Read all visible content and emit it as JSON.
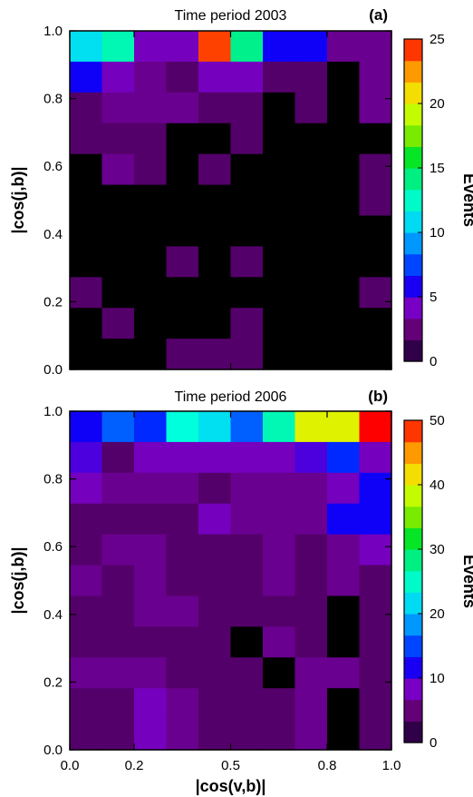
{
  "chart_data": [
    {
      "type": "heatmap",
      "panel": "(a)",
      "title": "Time period 2003",
      "xlabel": "",
      "ylabel": "|cos(j,b)|",
      "colorbar_label": "Events",
      "xlim": [
        0.0,
        1.0
      ],
      "ylim": [
        0.0,
        1.0
      ],
      "x_ticks": [
        "0.0",
        "0.2",
        "0.5",
        "0.8",
        "1.0"
      ],
      "x_ticks_shown": false,
      "y_ticks": [
        "0.0",
        "0.2",
        "0.4",
        "0.6",
        "0.8",
        "1.0"
      ],
      "colorbar_range": [
        0,
        25
      ],
      "colorbar_ticks": [
        "0",
        "5",
        "10",
        "15",
        "20",
        "25"
      ],
      "grid_rows": 11,
      "grid_cols": 10,
      "values_top_to_bottom": [
        [
          11,
          13,
          4,
          4,
          24,
          14,
          6,
          6,
          3,
          3
        ],
        [
          6,
          4,
          3,
          2,
          4,
          4,
          2,
          2,
          0,
          3
        ],
        [
          2,
          3,
          3,
          3,
          2,
          2,
          0,
          2,
          0,
          3
        ],
        [
          2,
          2,
          2,
          0,
          0,
          2,
          0,
          0,
          0,
          0
        ],
        [
          0,
          3,
          2,
          0,
          2,
          0,
          0,
          0,
          0,
          2
        ],
        [
          0,
          0,
          0,
          0,
          0,
          0,
          0,
          0,
          0,
          2
        ],
        [
          0,
          0,
          0,
          0,
          0,
          0,
          0,
          0,
          0,
          0
        ],
        [
          0,
          0,
          0,
          2,
          0,
          2,
          0,
          0,
          0,
          0
        ],
        [
          2,
          0,
          0,
          0,
          0,
          0,
          0,
          0,
          0,
          2
        ],
        [
          0,
          2,
          0,
          0,
          0,
          2,
          0,
          0,
          0,
          0
        ],
        [
          0,
          0,
          0,
          2,
          2,
          2,
          0,
          0,
          0,
          0
        ]
      ]
    },
    {
      "type": "heatmap",
      "panel": "(b)",
      "title": "Time period 2006",
      "xlabel": "|cos(v,b)|",
      "ylabel": "|cos(j,b)|",
      "colorbar_label": "Events",
      "xlim": [
        0.0,
        1.0
      ],
      "ylim": [
        0.0,
        1.0
      ],
      "x_ticks": [
        "0.0",
        "0.2",
        "0.5",
        "0.8",
        "1.0"
      ],
      "x_ticks_shown": true,
      "y_ticks": [
        "0.0",
        "0.2",
        "0.4",
        "0.6",
        "0.8",
        "1.0"
      ],
      "colorbar_range": [
        0,
        50
      ],
      "colorbar_ticks": [
        "0",
        "10",
        "20",
        "30",
        "40",
        "50"
      ],
      "grid_rows": 11,
      "grid_cols": 10,
      "values_top_to_bottom": [
        [
          12,
          16,
          14,
          24,
          22,
          16,
          26,
          40,
          40,
          50
        ],
        [
          10,
          4,
          8,
          8,
          8,
          8,
          8,
          10,
          14,
          8
        ],
        [
          8,
          6,
          6,
          6,
          4,
          6,
          6,
          6,
          8,
          12
        ],
        [
          4,
          4,
          4,
          4,
          8,
          6,
          6,
          6,
          12,
          12
        ],
        [
          4,
          6,
          6,
          4,
          4,
          4,
          6,
          4,
          6,
          8
        ],
        [
          6,
          4,
          6,
          4,
          4,
          4,
          6,
          4,
          6,
          4
        ],
        [
          4,
          4,
          6,
          6,
          4,
          4,
          4,
          4,
          0,
          4
        ],
        [
          4,
          4,
          4,
          4,
          4,
          0,
          6,
          4,
          0,
          4
        ],
        [
          6,
          6,
          6,
          4,
          4,
          4,
          0,
          6,
          6,
          4
        ],
        [
          4,
          4,
          8,
          6,
          4,
          4,
          4,
          6,
          0,
          4
        ],
        [
          4,
          4,
          8,
          6,
          4,
          4,
          4,
          6,
          0,
          4
        ]
      ]
    }
  ]
}
